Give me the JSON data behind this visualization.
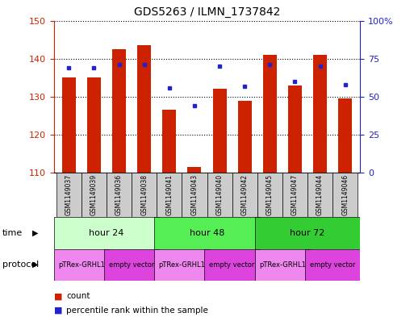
{
  "title": "GDS5263 / ILMN_1737842",
  "samples": [
    "GSM1149037",
    "GSM1149039",
    "GSM1149036",
    "GSM1149038",
    "GSM1149041",
    "GSM1149043",
    "GSM1149040",
    "GSM1149042",
    "GSM1149045",
    "GSM1149047",
    "GSM1149044",
    "GSM1149046"
  ],
  "counts": [
    135,
    135,
    142.5,
    143.5,
    126.5,
    111.5,
    132,
    129,
    141,
    133,
    141,
    129.5
  ],
  "percentile_ranks": [
    69,
    69,
    71,
    71,
    56,
    44,
    70,
    57,
    71,
    60,
    70,
    58
  ],
  "ylim_left": [
    110,
    150
  ],
  "ylim_right": [
    0,
    100
  ],
  "yticks_left": [
    110,
    120,
    130,
    140,
    150
  ],
  "yticks_right": [
    0,
    25,
    50,
    75,
    100
  ],
  "yticklabels_right": [
    "0",
    "25",
    "50",
    "75",
    "100%"
  ],
  "bar_color": "#cc2200",
  "dot_color": "#2222cc",
  "time_groups": [
    {
      "label": "hour 24",
      "start": 0,
      "end": 4,
      "color": "#ccffcc"
    },
    {
      "label": "hour 48",
      "start": 4,
      "end": 8,
      "color": "#55ee55"
    },
    {
      "label": "hour 72",
      "start": 8,
      "end": 12,
      "color": "#33cc33"
    }
  ],
  "protocol_groups": [
    {
      "label": "pTRex-GRHL1",
      "start": 0,
      "end": 2,
      "color": "#ee88ee"
    },
    {
      "label": "empty vector",
      "start": 2,
      "end": 4,
      "color": "#dd44dd"
    },
    {
      "label": "pTRex-GRHL1",
      "start": 4,
      "end": 6,
      "color": "#ee88ee"
    },
    {
      "label": "empty vector",
      "start": 6,
      "end": 8,
      "color": "#dd44dd"
    },
    {
      "label": "pTRex-GRHL1",
      "start": 8,
      "end": 10,
      "color": "#ee88ee"
    },
    {
      "label": "empty vector",
      "start": 10,
      "end": 12,
      "color": "#dd44dd"
    }
  ],
  "bg_color": "#ffffff",
  "tick_color_left": "#cc2200",
  "tick_color_right": "#2222cc",
  "sample_bg_color": "#cccccc",
  "figsize": [
    5.13,
    3.93
  ],
  "dpi": 100
}
